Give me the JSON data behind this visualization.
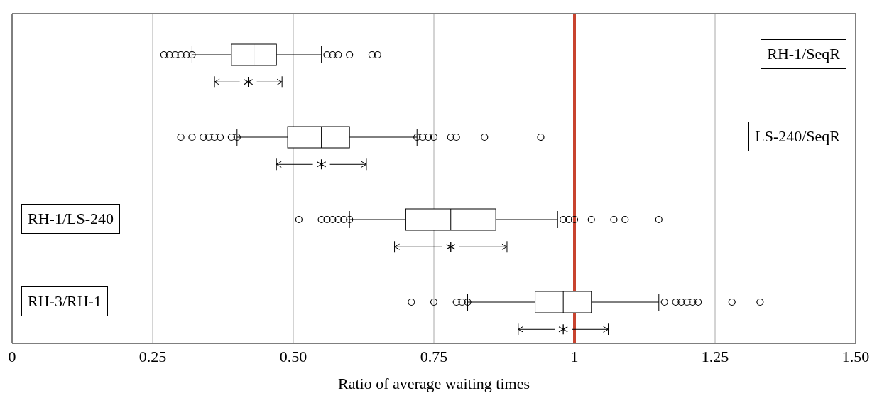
{
  "chart_data": {
    "type": "box",
    "orientation": "horizontal",
    "xlabel": "Ratio of average waiting times",
    "categories": [
      null,
      null,
      null,
      null
    ],
    "annotations": [
      "RH-1/SeqR",
      "LS-240/SeqR",
      "RH-1/LS-240",
      "RH-3/RH-1"
    ],
    "xlim": [
      0,
      1.5
    ],
    "xticks": [
      0,
      0.25,
      {
        "value": 0.5,
        "label": "0.50"
      },
      0.75,
      1,
      1.25,
      {
        "value": 1.5,
        "label": "1.50"
      }
    ],
    "grid": "x",
    "tick_labels": "x",
    "ref_lines": [
      {
        "axis": "x",
        "value": 1,
        "color": "#c8432f"
      }
    ],
    "series": [
      {
        "type": "box",
        "color": "#000000",
        "boxes": [
          {
            "low": 0.32,
            "q1": 0.39,
            "median": 0.43,
            "q3": 0.47,
            "high": 0.55,
            "outliers": [
              0.27,
              0.28,
              0.29,
              0.3,
              0.31,
              0.32,
              0.56,
              0.57,
              0.58,
              0.6,
              0.64,
              0.65
            ]
          },
          {
            "low": 0.4,
            "q1": 0.49,
            "median": 0.55,
            "q3": 0.6,
            "high": 0.72,
            "outliers": [
              0.3,
              0.32,
              0.34,
              0.35,
              0.36,
              0.37,
              0.39,
              0.4,
              0.72,
              0.73,
              0.74,
              0.75,
              0.78,
              0.79,
              0.84,
              0.94
            ]
          },
          {
            "low": 0.6,
            "q1": 0.7,
            "median": 0.78,
            "q3": 0.86,
            "high": 0.97,
            "outliers": [
              0.51,
              0.55,
              0.56,
              0.57,
              0.58,
              0.59,
              0.6,
              0.98,
              0.99,
              1.0,
              1.03,
              1.07,
              1.09,
              1.15
            ]
          },
          {
            "low": 0.81,
            "q1": 0.93,
            "median": 0.98,
            "q3": 1.03,
            "high": 1.15,
            "outliers": [
              0.71,
              0.75,
              0.79,
              0.8,
              0.81,
              1.16,
              1.18,
              1.19,
              1.2,
              1.21,
              1.22,
              1.28,
              1.33
            ]
          }
        ]
      },
      {
        "type": "scatter",
        "marker": "cross",
        "color": "#000000",
        "values": [
          0.42,
          0.55,
          0.78,
          0.98
        ],
        "errors": [
          [
            0.36,
            0.48
          ],
          [
            0.47,
            0.63
          ],
          [
            0.68,
            0.88
          ],
          [
            0.9,
            1.06
          ]
        ]
      }
    ]
  }
}
